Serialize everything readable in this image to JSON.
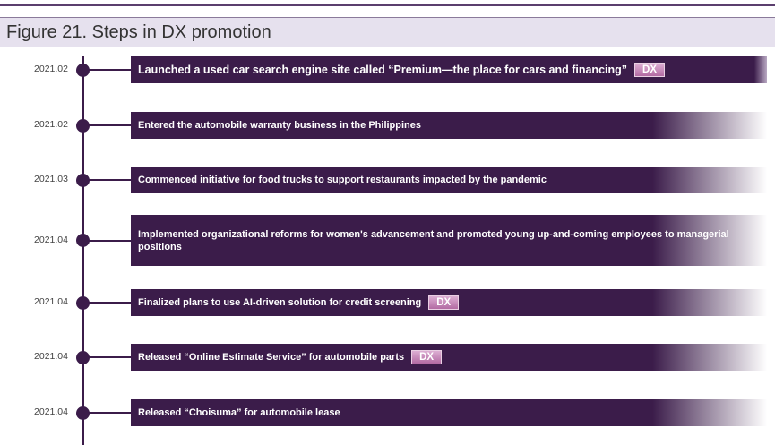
{
  "header": {
    "title": "Figure 21. Steps in DX promotion"
  },
  "items": [
    {
      "date": "2021.02",
      "text": "Launched a used car search engine site called “Premium—the place for cars and financing”",
      "badge": "DX"
    },
    {
      "date": "2021.02",
      "text": "Entered the automobile warranty business in the Philippines"
    },
    {
      "date": "2021.03",
      "text": "Commenced initiative for food trucks to support restaurants impacted by the pandemic"
    },
    {
      "date": "2021.04",
      "text": "Implemented organizational reforms for women's advancement and promoted young up-and-coming employees to managerial positions"
    },
    {
      "date": "2021.04",
      "text": "Finalized plans to use AI-driven solution for credit screening",
      "badge": "DX"
    },
    {
      "date": "2021.04",
      "text": "Released “Online Estimate Service” for automobile parts",
      "badge": "DX"
    },
    {
      "date": "2021.04",
      "text": "Released “Choisuma” for automobile lease"
    }
  ]
}
